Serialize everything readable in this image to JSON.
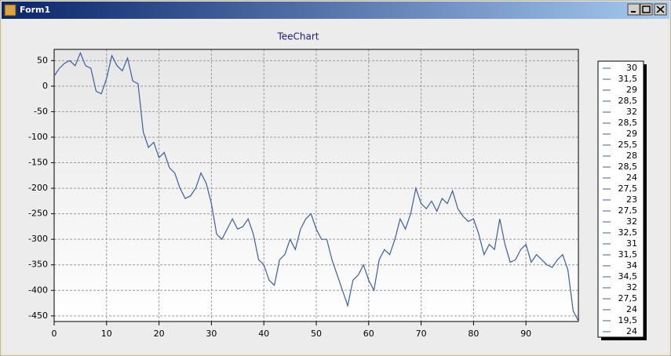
{
  "window": {
    "title": "Form1"
  },
  "chart_data": {
    "type": "line",
    "title": "TeeChart",
    "color": "#3d5f9e",
    "x": [
      0,
      1,
      2,
      3,
      4,
      5,
      6,
      7,
      8,
      9,
      10,
      11,
      12,
      13,
      14,
      15,
      16,
      17,
      18,
      19,
      20,
      21,
      22,
      23,
      24,
      25,
      26,
      27,
      28,
      29,
      30,
      31,
      32,
      33,
      34,
      35,
      36,
      37,
      38,
      39,
      40,
      41,
      42,
      43,
      44,
      45,
      46,
      47,
      48,
      49,
      50,
      51,
      52,
      53,
      54,
      55,
      56,
      57,
      58,
      59,
      60,
      61,
      62,
      63,
      64,
      65,
      66,
      67,
      68,
      69,
      70,
      71,
      72,
      73,
      74,
      75,
      76,
      77,
      78,
      79,
      80,
      81,
      82,
      83,
      84,
      85,
      86,
      87,
      88,
      89,
      90,
      91,
      92,
      93,
      94,
      95,
      96,
      97,
      98,
      99,
      100
    ],
    "values": [
      20,
      35,
      45,
      50,
      40,
      65,
      40,
      35,
      -10,
      -15,
      15,
      60,
      40,
      30,
      55,
      10,
      5,
      -90,
      -120,
      -110,
      -140,
      -130,
      -160,
      -170,
      -200,
      -220,
      -215,
      -200,
      -170,
      -190,
      -230,
      -290,
      -300,
      -280,
      -260,
      -280,
      -275,
      -260,
      -290,
      -340,
      -350,
      -380,
      -390,
      -340,
      -330,
      -300,
      -320,
      -280,
      -260,
      -250,
      -280,
      -300,
      -300,
      -340,
      -370,
      -400,
      -430,
      -380,
      -370,
      -350,
      -380,
      -400,
      -340,
      -320,
      -330,
      -300,
      -260,
      -280,
      -250,
      -200,
      -230,
      -240,
      -225,
      -245,
      -220,
      -230,
      -205,
      -240,
      -255,
      -265,
      -260,
      -290,
      -330,
      -310,
      -320,
      -260,
      -310,
      -345,
      -340,
      -320,
      -310,
      -345,
      -330,
      -340,
      -350,
      -355,
      -340,
      -330,
      -360,
      -440,
      -460
    ],
    "xlim": [
      0,
      100
    ],
    "ylim": [
      -461,
      72
    ],
    "xticks": [
      0,
      10,
      20,
      30,
      40,
      50,
      60,
      70,
      80,
      90
    ],
    "yticks": [
      50,
      0,
      -50,
      -100,
      -150,
      -200,
      -250,
      -300,
      -350,
      -400,
      -450
    ],
    "grid": true,
    "legend_items": [
      30,
      {
        "value": 31.5,
        "label": "31,5"
      },
      29,
      {
        "value": 28.5,
        "label": "28,5"
      },
      32,
      {
        "value": 28.5,
        "label": "28,5"
      },
      29,
      {
        "value": 25.5,
        "label": "25,5"
      },
      28,
      {
        "value": 28.5,
        "label": "28,5"
      },
      24,
      {
        "value": 27.5,
        "label": "27,5"
      },
      23,
      {
        "value": 27.5,
        "label": "27,5"
      },
      32,
      {
        "value": 32.5,
        "label": "32,5"
      },
      31,
      {
        "value": 31.5,
        "label": "31,5"
      },
      34,
      {
        "value": 34.5,
        "label": "34,5"
      },
      32,
      {
        "value": 27.5,
        "label": "27,5"
      },
      24,
      {
        "value": 19.5,
        "label": "19,5"
      },
      24
    ]
  }
}
